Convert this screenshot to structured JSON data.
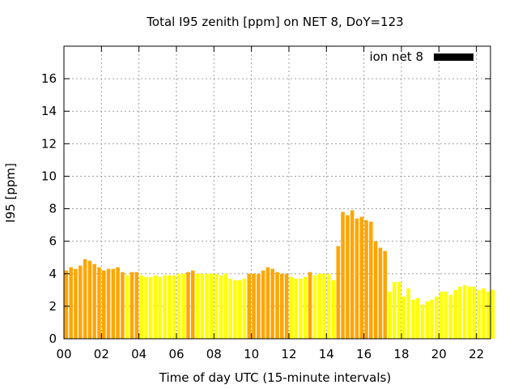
{
  "chart_data": {
    "type": "bar",
    "title": "Total I95 zenith [ppm] on NET 8, DoY=123",
    "xlabel": "Time of day UTC (15-minute intervals)",
    "ylabel": "I95 [ppm]",
    "xlim": [
      0,
      22.75
    ],
    "ylim": [
      0,
      18
    ],
    "x_ticks": [
      "00",
      "02",
      "04",
      "06",
      "08",
      "10",
      "12",
      "14",
      "16",
      "18",
      "20",
      "22"
    ],
    "y_ticks": [
      "0",
      "2",
      "4",
      "6",
      "8",
      "10",
      "12",
      "14",
      "16"
    ],
    "grid": true,
    "legend": {
      "position": "top-right",
      "entries": [
        {
          "name": "ion net 8",
          "color": "#000000"
        }
      ]
    },
    "colors": {
      "high": "#ffa500",
      "low": "#ffff00",
      "grid": "#a0a0a0"
    },
    "series": [
      {
        "name": "ion net 8",
        "x": [
          0.0,
          0.25,
          0.5,
          0.75,
          1.0,
          1.25,
          1.5,
          1.75,
          2.0,
          2.25,
          2.5,
          2.75,
          3.0,
          3.25,
          3.5,
          3.75,
          4.0,
          4.25,
          4.5,
          4.75,
          5.0,
          5.25,
          5.5,
          5.75,
          6.0,
          6.25,
          6.5,
          6.75,
          7.0,
          7.25,
          7.5,
          7.75,
          8.0,
          8.25,
          8.5,
          8.75,
          9.0,
          9.25,
          9.5,
          9.75,
          10.0,
          10.25,
          10.5,
          10.75,
          11.0,
          11.25,
          11.5,
          11.75,
          12.0,
          12.25,
          12.5,
          12.75,
          13.0,
          13.25,
          13.5,
          13.75,
          14.0,
          14.25,
          14.5,
          14.75,
          15.0,
          15.25,
          15.5,
          15.75,
          16.0,
          16.25,
          16.5,
          16.75,
          17.0,
          17.25,
          17.5,
          17.75,
          18.0,
          18.25,
          18.5,
          18.75,
          19.0,
          19.25,
          19.5,
          19.75,
          20.0,
          20.25,
          20.5,
          20.75,
          21.0,
          21.25,
          21.5,
          21.75,
          22.0,
          22.25,
          22.5,
          22.75
        ],
        "values": [
          4.2,
          4.4,
          4.3,
          4.5,
          4.9,
          4.8,
          4.6,
          4.4,
          4.2,
          4.3,
          4.3,
          4.4,
          4.1,
          3.9,
          4.1,
          4.1,
          3.9,
          3.8,
          3.8,
          3.9,
          3.8,
          3.9,
          3.9,
          3.9,
          4.0,
          4.0,
          4.1,
          4.2,
          4.0,
          4.0,
          4.0,
          4.0,
          4.0,
          3.9,
          4.0,
          3.7,
          3.6,
          3.6,
          3.7,
          4.0,
          4.0,
          4.0,
          4.2,
          4.4,
          4.3,
          4.1,
          4.0,
          4.0,
          3.8,
          3.7,
          3.7,
          3.8,
          4.1,
          3.9,
          4.0,
          4.0,
          4.0,
          3.6,
          5.7,
          7.8,
          7.6,
          7.9,
          7.4,
          7.5,
          7.3,
          7.2,
          6.0,
          5.6,
          5.4,
          2.9,
          3.5,
          3.5,
          2.6,
          3.1,
          2.4,
          2.5,
          2.1,
          2.3,
          2.4,
          2.6,
          2.9,
          2.9,
          2.7,
          3.0,
          3.2,
          3.3,
          3.2,
          3.2,
          3.0,
          3.1,
          2.9,
          3.0
        ],
        "levels": [
          "high",
          "high",
          "high",
          "high",
          "high",
          "high",
          "high",
          "high",
          "high",
          "high",
          "high",
          "high",
          "high",
          "low",
          "high",
          "high",
          "low",
          "low",
          "low",
          "low",
          "low",
          "low",
          "low",
          "low",
          "low",
          "low",
          "high",
          "high",
          "low",
          "low",
          "low",
          "low",
          "low",
          "low",
          "low",
          "low",
          "low",
          "low",
          "low",
          "high",
          "high",
          "high",
          "high",
          "high",
          "high",
          "high",
          "high",
          "high",
          "low",
          "low",
          "low",
          "low",
          "high",
          "low",
          "low",
          "low",
          "low",
          "low",
          "high",
          "high",
          "high",
          "high",
          "high",
          "high",
          "high",
          "high",
          "high",
          "high",
          "high",
          "low",
          "low",
          "low",
          "low",
          "low",
          "low",
          "low",
          "low",
          "low",
          "low",
          "low",
          "low",
          "low",
          "low",
          "low",
          "low",
          "low",
          "low",
          "low",
          "low",
          "low",
          "low",
          "low"
        ]
      }
    ]
  }
}
